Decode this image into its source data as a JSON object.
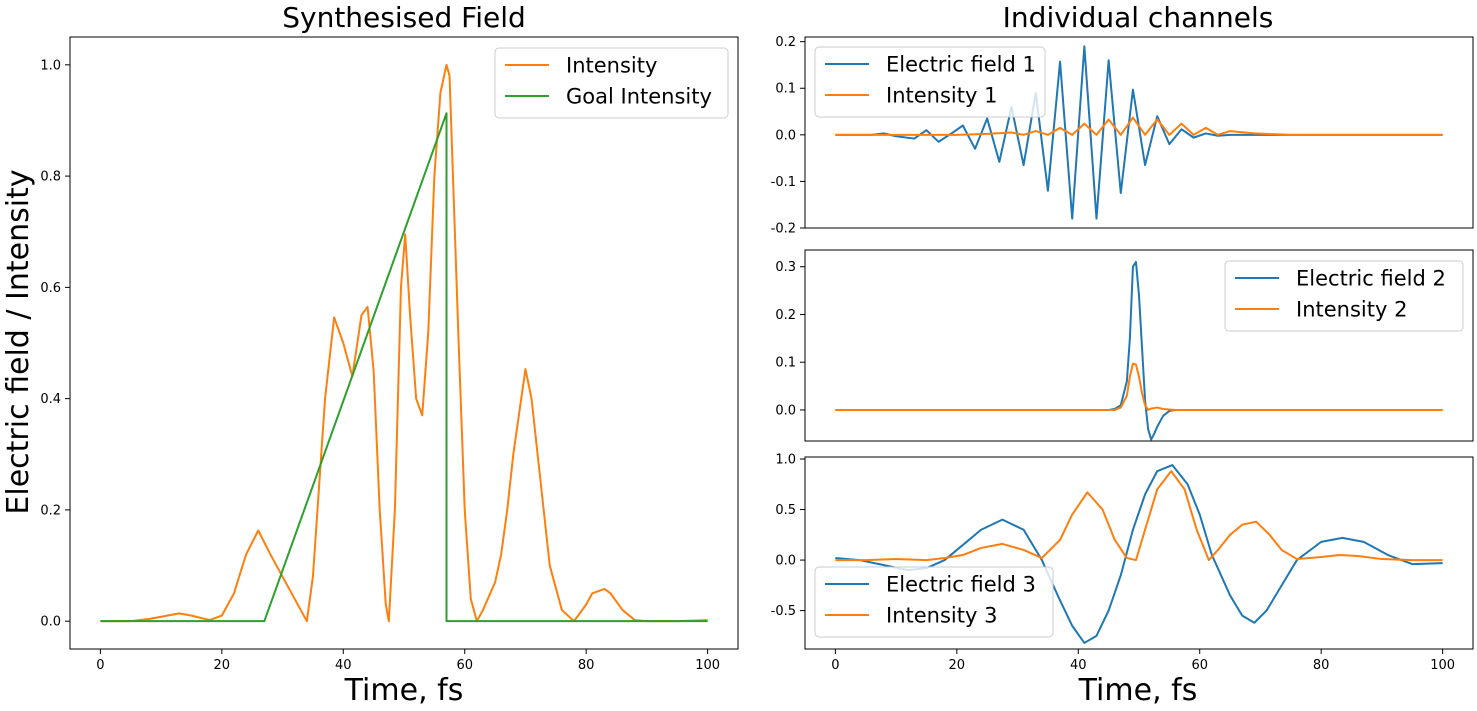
{
  "colors": {
    "blue": "#1f77b4",
    "orange": "#ff7f0e",
    "green": "#2ca02c"
  },
  "chart_data": [
    {
      "type": "line",
      "title": "Synthesised Field",
      "xlabel": "Time, fs",
      "ylabel": "Electric field / Intensity",
      "xlim": [
        -5,
        105
      ],
      "ylim": [
        -0.05,
        1.05
      ],
      "xticks": [
        0,
        20,
        40,
        60,
        80,
        100
      ],
      "yticks": [
        0.0,
        0.2,
        0.4,
        0.6,
        0.8,
        1.0
      ],
      "legend": "top-right",
      "series": [
        {
          "name": "Intensity",
          "color": "#ff7f0e",
          "x": [
            0,
            5,
            8,
            10,
            13,
            15,
            18,
            20,
            22,
            24,
            26,
            28,
            30,
            32,
            34,
            35,
            37,
            38.5,
            40,
            41.5,
            43,
            44,
            45,
            46,
            47,
            47.5,
            48.5,
            49.5,
            50.2,
            51,
            52,
            53,
            54,
            55,
            56,
            57,
            57.5,
            59,
            60,
            61,
            62,
            63,
            65,
            66,
            67,
            68,
            70,
            71,
            72,
            74,
            76,
            78,
            80,
            81,
            83,
            84,
            86,
            88,
            90,
            95,
            100
          ],
          "y": [
            0.0,
            0.0,
            0.004,
            0.008,
            0.014,
            0.01,
            0.002,
            0.01,
            0.05,
            0.12,
            0.163,
            0.12,
            0.08,
            0.04,
            0.0,
            0.08,
            0.4,
            0.546,
            0.5,
            0.44,
            0.55,
            0.565,
            0.45,
            0.2,
            0.03,
            0.0,
            0.2,
            0.6,
            0.695,
            0.55,
            0.4,
            0.37,
            0.52,
            0.8,
            0.95,
            1.0,
            0.98,
            0.5,
            0.2,
            0.04,
            0.0,
            0.02,
            0.07,
            0.12,
            0.2,
            0.3,
            0.453,
            0.4,
            0.3,
            0.1,
            0.02,
            0.0,
            0.03,
            0.05,
            0.058,
            0.05,
            0.02,
            0.002,
            0.0,
            0.0,
            0.002
          ]
        },
        {
          "name": "Goal Intensity",
          "color": "#2ca02c",
          "x": [
            0,
            27,
            57,
            57,
            100
          ],
          "y": [
            0,
            0,
            0.913,
            0,
            0
          ]
        }
      ]
    },
    {
      "type": "line",
      "title": "Individual channels",
      "xlim": [
        -5,
        105
      ],
      "ylim": [
        -0.2,
        0.21
      ],
      "yticks": [
        -0.2,
        -0.1,
        0.0,
        0.1,
        0.2
      ],
      "legend": "top-left",
      "series": [
        {
          "name": "Electric field 1",
          "color": "#1f77b4",
          "x": [
            0,
            6,
            8,
            10,
            13,
            15,
            17,
            19,
            21,
            23,
            25,
            27,
            29,
            31,
            33,
            35,
            37,
            39,
            41,
            43,
            45,
            47,
            49,
            51,
            53,
            55,
            57,
            59,
            61,
            63,
            65,
            67,
            69,
            71,
            73,
            75,
            77,
            79,
            81,
            83,
            85,
            87,
            89,
            91,
            93,
            100
          ],
          "y": [
            0,
            0,
            0.003,
            -0.003,
            -0.008,
            0.01,
            -0.015,
            0.002,
            0.02,
            -0.03,
            0.035,
            -0.058,
            0.06,
            -0.065,
            0.09,
            -0.12,
            0.157,
            -0.18,
            0.19,
            -0.18,
            0.16,
            -0.125,
            0.097,
            -0.065,
            0.04,
            -0.02,
            0.012,
            -0.006,
            0.003,
            -0.002,
            0.0,
            0.0,
            0.0,
            0.0,
            0.0,
            0.0,
            0.0,
            0.0,
            0.0,
            0.0,
            0.0,
            0.0,
            0.0,
            0.0,
            0.0,
            0.0
          ]
        },
        {
          "name": "Intensity 1",
          "color": "#ff7f0e",
          "x": [
            0,
            20,
            25,
            29,
            31,
            33,
            35,
            37,
            39,
            41,
            43,
            45,
            47,
            49,
            51,
            53,
            55,
            57,
            59,
            61,
            63,
            65,
            69,
            75,
            100
          ],
          "y": [
            0,
            0,
            0.002,
            0.005,
            0.0,
            0.008,
            0.0,
            0.015,
            0.0,
            0.024,
            0.0,
            0.033,
            0.0,
            0.037,
            0.0,
            0.033,
            0.0,
            0.024,
            0.0,
            0.015,
            0.0,
            0.008,
            0.003,
            0.0,
            0.0
          ]
        },
        {
          "name": "",
          "x_note": "",
          "x": [],
          "y": []
        }
      ]
    },
    {
      "type": "line",
      "xlim": [
        -5,
        105
      ],
      "ylim": [
        -0.065,
        0.335
      ],
      "yticks": [
        0.0,
        0.1,
        0.2,
        0.3
      ],
      "legend": "top-right",
      "series": [
        {
          "name": "Electric field 2",
          "color": "#1f77b4",
          "x": [
            0,
            45,
            46,
            47,
            48,
            48.5,
            49,
            49.5,
            50,
            50.5,
            51,
            51.5,
            52,
            52.5,
            53,
            54,
            55,
            56,
            60,
            100
          ],
          "y": [
            0,
            0,
            0.002,
            0.01,
            0.06,
            0.15,
            0.3,
            0.31,
            0.24,
            0.13,
            0.02,
            -0.04,
            -0.062,
            -0.05,
            -0.035,
            -0.012,
            -0.002,
            0,
            0,
            0
          ]
        },
        {
          "name": "Intensity 2",
          "color": "#ff7f0e",
          "x": [
            0,
            46,
            47,
            48,
            48.5,
            49,
            49.5,
            50,
            50.5,
            51,
            51.5,
            52,
            53,
            54,
            56,
            100
          ],
          "y": [
            0,
            0,
            0.005,
            0.03,
            0.07,
            0.097,
            0.095,
            0.07,
            0.035,
            0.01,
            0.0,
            0.003,
            0.005,
            0.002,
            0,
            0
          ]
        }
      ]
    },
    {
      "type": "line",
      "xlim": [
        -5,
        105
      ],
      "ylim": [
        -0.88,
        1.02
      ],
      "yticks": [
        -0.5,
        0.0,
        0.5,
        1.0
      ],
      "xticks": [
        0,
        20,
        40,
        60,
        80,
        100
      ],
      "xlabel": "Time, fs",
      "legend": "bottom-left",
      "series": [
        {
          "name": "Electric field 3",
          "color": "#1f77b4",
          "x": [
            0,
            4,
            8,
            12,
            15,
            18,
            21,
            24,
            27.5,
            31,
            34,
            37,
            39,
            41,
            43,
            45,
            47,
            49,
            51,
            53,
            55.5,
            58,
            60,
            62,
            65,
            67,
            69,
            71,
            73,
            76,
            80,
            83.5,
            87,
            91,
            95,
            100
          ],
          "y": [
            0.02,
            0.0,
            -0.05,
            -0.1,
            -0.08,
            0.0,
            0.15,
            0.3,
            0.4,
            0.3,
            0.0,
            -0.4,
            -0.65,
            -0.82,
            -0.75,
            -0.5,
            -0.15,
            0.3,
            0.65,
            0.88,
            0.94,
            0.75,
            0.45,
            0.05,
            -0.35,
            -0.55,
            -0.62,
            -0.5,
            -0.3,
            0.0,
            0.18,
            0.22,
            0.18,
            0.05,
            -0.04,
            -0.03
          ]
        },
        {
          "name": "Intensity 3",
          "color": "#ff7f0e",
          "x": [
            0,
            5,
            10,
            15,
            18,
            21,
            24,
            27.5,
            31,
            34,
            37,
            39,
            41.5,
            44,
            46,
            48,
            49.5,
            51,
            53,
            55.3,
            57.5,
            59.5,
            61.5,
            63,
            65,
            67,
            69.3,
            71.5,
            73.5,
            76,
            80,
            83,
            86,
            90,
            95,
            100
          ],
          "y": [
            0,
            0,
            0.01,
            0.0,
            0.02,
            0.05,
            0.12,
            0.16,
            0.1,
            0.02,
            0.2,
            0.45,
            0.67,
            0.5,
            0.2,
            0.02,
            0.0,
            0.3,
            0.7,
            0.88,
            0.7,
            0.3,
            0.0,
            0.1,
            0.25,
            0.35,
            0.38,
            0.25,
            0.1,
            0.01,
            0.03,
            0.05,
            0.04,
            0.01,
            0.0,
            0.0
          ]
        }
      ]
    }
  ]
}
